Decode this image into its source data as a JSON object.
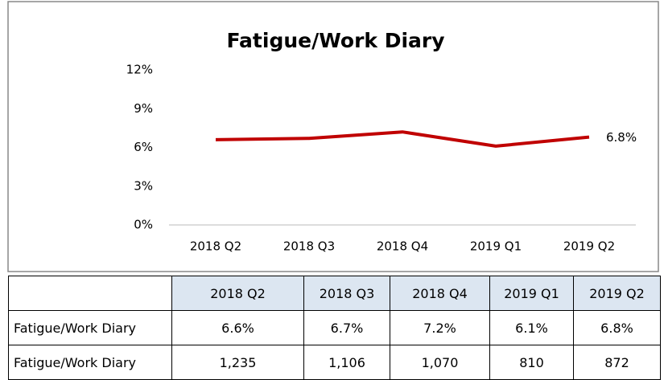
{
  "chart_data": {
    "type": "line",
    "title": "Fatigue/Work Diary",
    "categories": [
      "2018 Q2",
      "2018 Q3",
      "2018 Q4",
      "2019 Q1",
      "2019 Q2"
    ],
    "series": [
      {
        "name": "Fatigue/Work Diary",
        "color": "#c00000",
        "values": [
          6.6,
          6.7,
          7.2,
          6.1,
          6.8
        ],
        "value_labels": [
          null,
          null,
          null,
          null,
          "6.8%"
        ]
      }
    ],
    "ylim": [
      0,
      12
    ],
    "yticks": [
      {
        "value": 0,
        "label": "0%"
      },
      {
        "value": 3,
        "label": "3%"
      },
      {
        "value": 6,
        "label": "6%"
      },
      {
        "value": 9,
        "label": "9%"
      },
      {
        "value": 12,
        "label": "12%"
      }
    ],
    "grid": false
  },
  "table": {
    "columns": [
      "2018 Q2",
      "2018 Q3",
      "2018 Q4",
      "2019 Q1",
      "2019 Q2"
    ],
    "rows": [
      [
        "Fatigue/Work Diary",
        "6.6%",
        "6.7%",
        "7.2%",
        "6.1%",
        "6.8%"
      ],
      [
        "Fatigue/Work Diary",
        "1,235",
        "1,106",
        "1,070",
        "810",
        "872"
      ]
    ]
  }
}
